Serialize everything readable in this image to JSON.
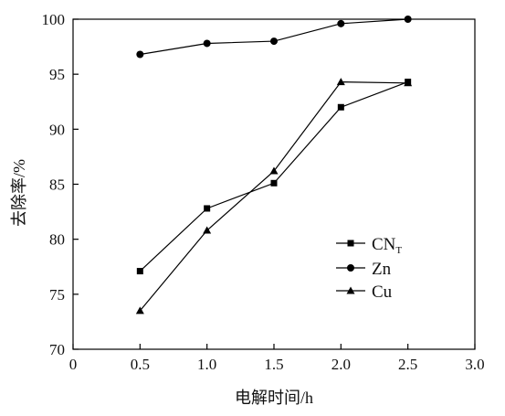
{
  "chart_data": {
    "type": "line",
    "xlabel": "电解时间/h",
    "ylabel": "去除率/%",
    "xlim": [
      0,
      3.0
    ],
    "ylim": [
      70,
      100
    ],
    "x_ticks": [
      "0",
      "0.5",
      "1.0",
      "1.5",
      "2.0",
      "2.5",
      "3.0"
    ],
    "y_ticks": [
      "70",
      "75",
      "80",
      "85",
      "90",
      "95",
      "100"
    ],
    "grid": false,
    "legend_position": "right-middle",
    "x": [
      0.5,
      1.0,
      1.5,
      2.0,
      2.5
    ],
    "series": [
      {
        "name": "CN",
        "name_subscript": "T",
        "marker": "square",
        "values": [
          77.1,
          82.8,
          85.1,
          92.0,
          94.3
        ]
      },
      {
        "name": "Zn",
        "marker": "circle",
        "values": [
          96.8,
          97.8,
          98.0,
          99.6,
          100.0
        ]
      },
      {
        "name": "Cu",
        "marker": "triangle",
        "values": [
          73.5,
          80.8,
          86.2,
          94.3,
          94.2
        ]
      }
    ]
  }
}
